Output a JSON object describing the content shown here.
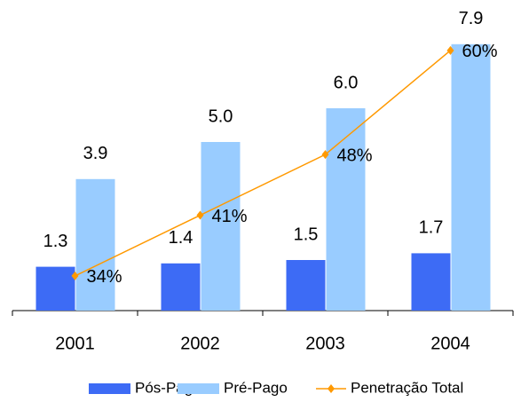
{
  "chart_data": {
    "type": "bar",
    "categories": [
      "2001",
      "2002",
      "2003",
      "2004"
    ],
    "series": [
      {
        "name": "Pós-Pago",
        "color": "#3d6bf5",
        "values": [
          1.3,
          1.4,
          1.5,
          1.7
        ],
        "value_labels": [
          "1.3",
          "1.4",
          "1.5",
          "1.7"
        ]
      },
      {
        "name": "Pré-Pago",
        "color": "#99ccff",
        "values": [
          3.9,
          5.0,
          6.0,
          7.9
        ],
        "value_labels": [
          "3.9",
          "5.0",
          "6.0",
          "7.9"
        ]
      },
      {
        "name": "Penetração Total",
        "type": "line",
        "axis": "y2",
        "color": "#ff9900",
        "values": [
          34,
          41,
          48,
          60
        ],
        "value_labels": [
          "34%",
          "41%",
          "48%",
          "60%"
        ]
      }
    ],
    "ylim": [
      0,
      9
    ],
    "y2lim": [
      30,
      65
    ],
    "legend": "bottom"
  }
}
